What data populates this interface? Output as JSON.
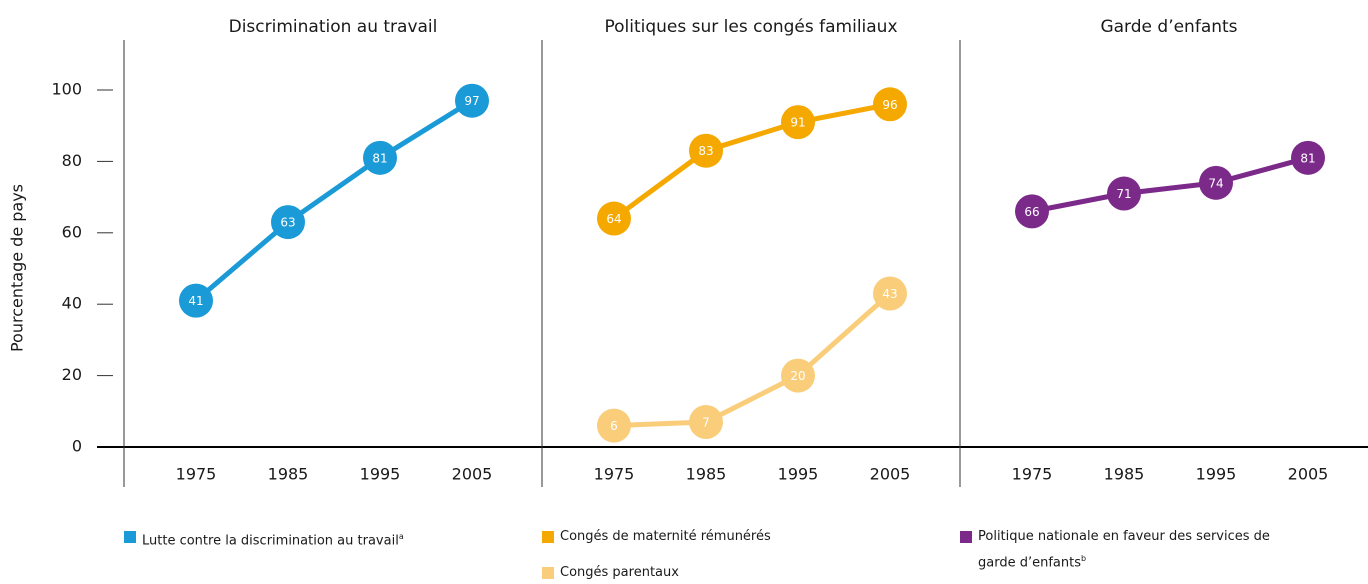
{
  "chart_data": {
    "type": "line",
    "ylabel": "Pourcentage de pays",
    "ylim": [
      0,
      110
    ],
    "yticks": [
      0,
      20,
      40,
      60,
      80,
      100
    ],
    "panels": [
      {
        "title": "Discrimination au travail",
        "categories": [
          "1975",
          "1985",
          "1995",
          "2005"
        ],
        "series": [
          {
            "name": "Lutte contre la discrimination au travail",
            "footnote": "a",
            "color": "#1a9ad6",
            "values": [
              41,
              63,
              81,
              97
            ]
          }
        ]
      },
      {
        "title": "Politiques sur les congés familiaux",
        "categories": [
          "1975",
          "1985",
          "1995",
          "2005"
        ],
        "series": [
          {
            "name": "Congés de maternité rémunérés",
            "color": "#f5a800",
            "values": [
              64,
              83,
              91,
              96
            ]
          },
          {
            "name": "Congés parentaux",
            "color": "#f9cd7a",
            "values": [
              6,
              7,
              20,
              43
            ]
          }
        ]
      },
      {
        "title": "Garde d’enfants",
        "categories": [
          "1975",
          "1985",
          "1995",
          "2005"
        ],
        "series": [
          {
            "name": "Politique nationale en faveur des services de garde d’enfants",
            "footnote": "b",
            "color": "#7b2a8a",
            "values": [
              66,
              71,
              74,
              81
            ]
          }
        ]
      }
    ]
  }
}
